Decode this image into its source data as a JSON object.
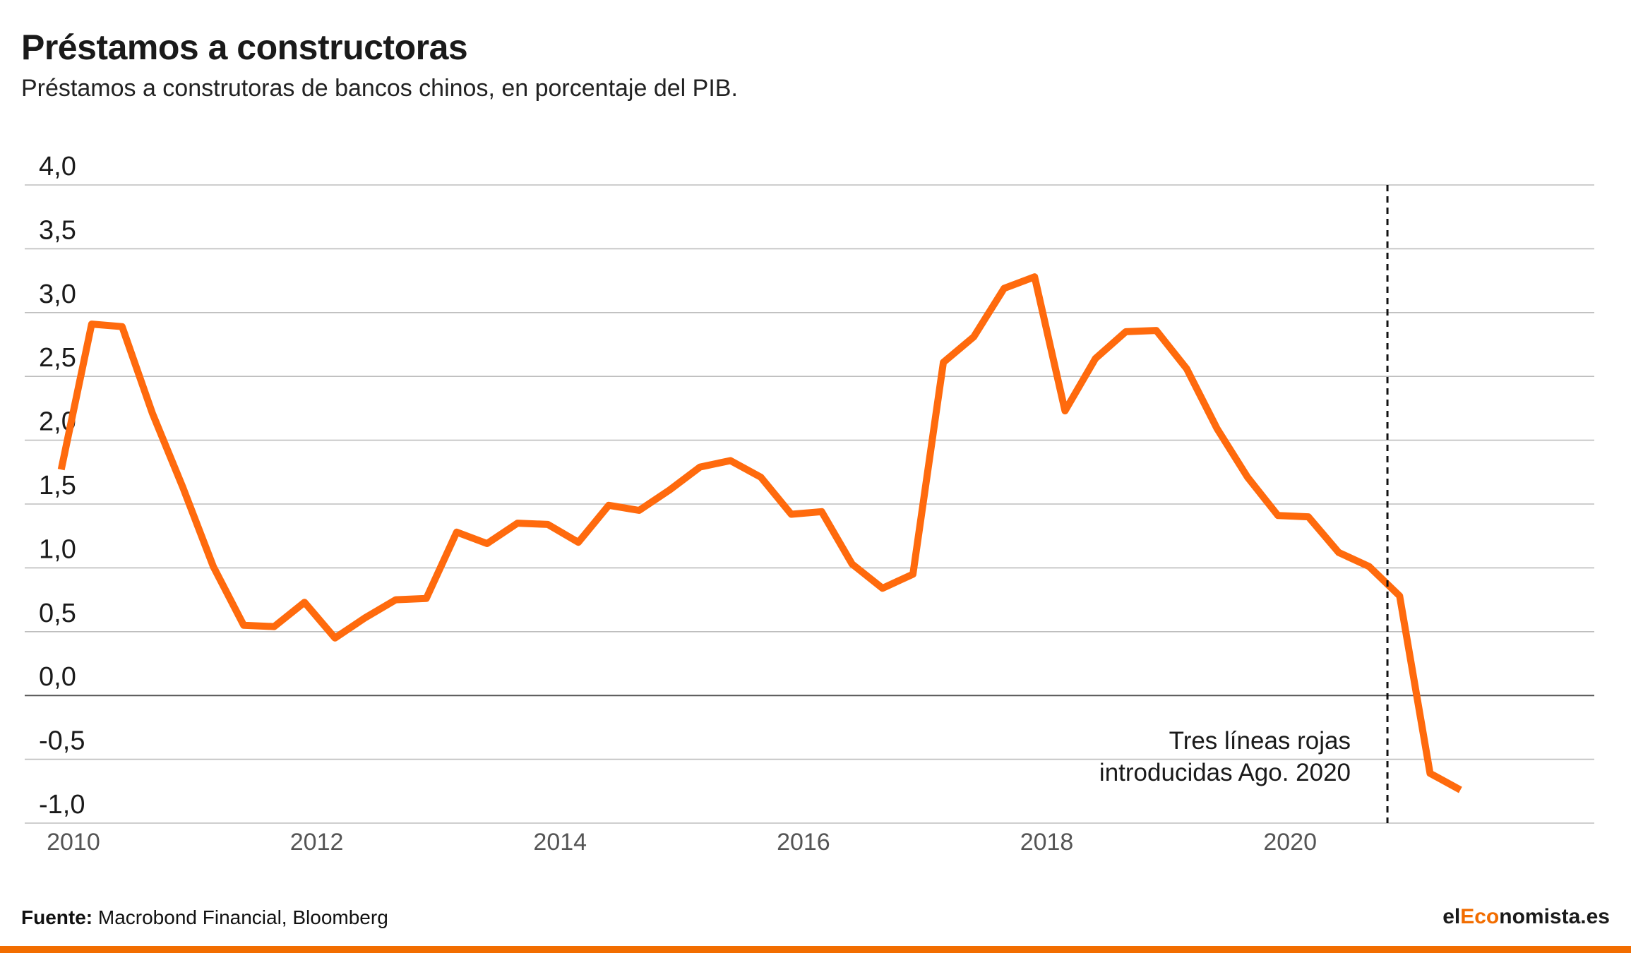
{
  "title": "Préstamos a constructoras",
  "subtitle": "Préstamos a construtoras de bancos chinos, en porcentaje del PIB.",
  "source_label": "Fuente:",
  "source_text": " Macrobond Financial, Bloomberg",
  "brand": {
    "prefix": "el",
    "accent": "Eco",
    "suffix": "nomista.es"
  },
  "colors": {
    "line": "#ff6a0d",
    "grid": "#bdbdbd",
    "zero": "#555555",
    "bar": "#f26d00",
    "brand_accent": "#f26d00"
  },
  "chart_data": {
    "type": "line",
    "title": "Préstamos a constructoras",
    "subtitle": "Préstamos a construtoras de bancos chinos, en porcentaje del PIB.",
    "xlabel": "",
    "ylabel": "",
    "ylim": [
      -1.0,
      4.0
    ],
    "xlim": [
      2009.6,
      2022.5
    ],
    "yticks": [
      4.0,
      3.5,
      3.0,
      2.5,
      2.0,
      1.5,
      1.0,
      0.5,
      0.0,
      -0.5,
      -1.0
    ],
    "ytick_labels": [
      "4,0",
      "3,5",
      "3,0",
      "2,5",
      "2,0",
      "1,5",
      "1,0",
      "0,5",
      "0,0",
      "-0,5",
      "-1,0"
    ],
    "xticks": [
      2010,
      2012,
      2014,
      2016,
      2018,
      2020
    ],
    "xtick_labels": [
      "2010",
      "2012",
      "2014",
      "2016",
      "2018",
      "2020"
    ],
    "grid": true,
    "legend": "none",
    "series": [
      {
        "x": [
          2009.9,
          2010.15,
          2010.4,
          2010.65,
          2010.9,
          2011.15,
          2011.4,
          2011.65,
          2011.9,
          2012.15,
          2012.4,
          2012.65,
          2012.9,
          2013.15,
          2013.4,
          2013.65,
          2013.9,
          2014.15,
          2014.4,
          2014.65,
          2014.9,
          2015.15,
          2015.4,
          2015.65,
          2015.9,
          2016.15,
          2016.4,
          2016.65,
          2016.9,
          2017.15,
          2017.4,
          2017.65,
          2017.9,
          2018.15,
          2018.4,
          2018.65,
          2018.9,
          2019.15,
          2019.4,
          2019.65,
          2019.9,
          2020.15,
          2020.4,
          2020.65,
          2020.9,
          2021.15,
          2021.4
        ],
        "values": [
          1.77,
          2.91,
          2.89,
          2.21,
          1.63,
          1.01,
          0.55,
          0.54,
          0.73,
          0.45,
          0.61,
          0.75,
          0.76,
          1.28,
          1.19,
          1.35,
          1.34,
          1.2,
          1.49,
          1.45,
          1.61,
          1.79,
          1.84,
          1.71,
          1.42,
          1.44,
          1.03,
          0.84,
          0.95,
          2.61,
          2.81,
          3.19,
          3.28,
          2.23,
          2.64,
          2.85,
          2.86,
          2.56,
          2.09,
          1.71,
          1.41,
          1.4,
          1.12,
          1.01,
          0.78,
          -0.61,
          -0.74
        ]
      }
    ],
    "annotations": [
      {
        "x": 2020.8,
        "type": "vline",
        "style": "dashed",
        "text_lines": [
          "Tres líneas rojas",
          "introducidas Ago. 2020"
        ]
      }
    ]
  }
}
